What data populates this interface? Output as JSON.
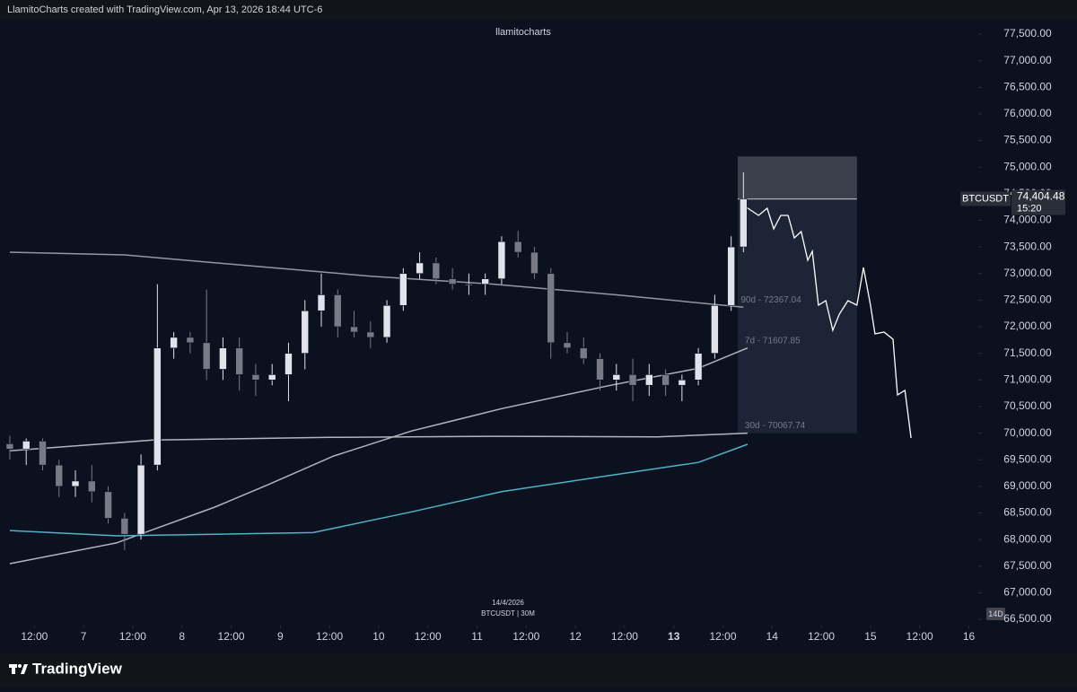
{
  "header": {
    "text": "LlamitoCharts created with TradingView.com, Apr 13, 2026 18:44 UTC-6"
  },
  "footer": {
    "brand": "TradingView"
  },
  "chart_data": {
    "type": "candlestick",
    "watermark": "llamitocharts",
    "date_note": "14/4/2026",
    "symbol_note": "BTCUSDT | 30M",
    "range_badge": "14D",
    "xlim": [
      -20.4,
      218.3
    ],
    "ylim": [
      66383,
      77770
    ],
    "xticks": [
      {
        "value": -12,
        "label": "12:00"
      },
      {
        "value": 0,
        "label": "7"
      },
      {
        "value": 12,
        "label": "12:00"
      },
      {
        "value": 24,
        "label": "8"
      },
      {
        "value": 36,
        "label": "12:00"
      },
      {
        "value": 48,
        "label": "9"
      },
      {
        "value": 60,
        "label": "12:00"
      },
      {
        "value": 72,
        "label": "10"
      },
      {
        "value": 84,
        "label": "12:00"
      },
      {
        "value": 96,
        "label": "11"
      },
      {
        "value": 108,
        "label": "12:00"
      },
      {
        "value": 120,
        "label": "12"
      },
      {
        "value": 132,
        "label": "12:00"
      },
      {
        "value": 144,
        "label": "13"
      },
      {
        "value": 156,
        "label": "12:00"
      },
      {
        "value": 168,
        "label": "14"
      },
      {
        "value": 180,
        "label": "12:00"
      },
      {
        "value": 192,
        "label": "15"
      },
      {
        "value": 204,
        "label": "12:00"
      },
      {
        "value": 216,
        "label": "16"
      }
    ],
    "yticks": [
      {
        "value": 66500,
        "label": "66,500.00"
      },
      {
        "value": 67000,
        "label": "67,000.00"
      },
      {
        "value": 67500,
        "label": "67,500.00"
      },
      {
        "value": 68000,
        "label": "68,000.00"
      },
      {
        "value": 68500,
        "label": "68,500.00"
      },
      {
        "value": 69000,
        "label": "69,000.00"
      },
      {
        "value": 69500,
        "label": "69,500.00"
      },
      {
        "value": 70000,
        "label": "70,000.00"
      },
      {
        "value": 70500,
        "label": "70,500.00"
      },
      {
        "value": 71000,
        "label": "71,000.00"
      },
      {
        "value": 71500,
        "label": "71,500.00"
      },
      {
        "value": 72000,
        "label": "72,000.00"
      },
      {
        "value": 72500,
        "label": "72,500.00"
      },
      {
        "value": 73000,
        "label": "73,000.00"
      },
      {
        "value": 73500,
        "label": "73,500.00"
      },
      {
        "value": 74000,
        "label": "74,000.00"
      },
      {
        "value": 74500,
        "label": "74,500.00"
      },
      {
        "value": 75000,
        "label": "75,000.00"
      },
      {
        "value": 75500,
        "label": "75,500.00"
      },
      {
        "value": 76000,
        "label": "76,000.00"
      },
      {
        "value": 76500,
        "label": "76,500.00"
      },
      {
        "value": 77000,
        "label": "77,000.00"
      },
      {
        "value": 77500,
        "label": "77,500.00"
      }
    ],
    "candles": {
      "up_color": "#e0e3eb",
      "down_color": "#787b86",
      "x": [
        -18,
        -14,
        -10,
        -6,
        -2,
        2,
        6,
        10,
        14,
        18,
        22,
        26,
        30,
        34,
        38,
        42,
        46,
        50,
        54,
        58,
        62,
        66,
        70,
        74,
        78,
        82,
        86,
        90,
        94,
        98,
        102,
        106,
        110,
        114,
        118,
        122,
        126,
        130,
        134,
        138,
        142,
        146,
        150,
        154,
        158,
        161
      ],
      "open": [
        69800,
        69700,
        69850,
        69400,
        69000,
        69100,
        68900,
        68400,
        68100,
        69400,
        71600,
        71800,
        71700,
        71200,
        71600,
        71100,
        71000,
        71100,
        71500,
        72300,
        72600,
        72000,
        71900,
        71800,
        72400,
        73000,
        73200,
        72900,
        72800,
        72800,
        72900,
        73600,
        73400,
        73000,
        71700,
        71600,
        71400,
        71000,
        71100,
        70900,
        71100,
        70900,
        71000,
        71500,
        72400,
        73500
      ],
      "high": [
        69950,
        69900,
        69900,
        69500,
        69300,
        69400,
        69000,
        68500,
        69600,
        72800,
        71900,
        71900,
        72700,
        71800,
        71800,
        71300,
        71300,
        71700,
        72500,
        73000,
        72700,
        72300,
        72100,
        72500,
        73100,
        73400,
        73300,
        73100,
        73000,
        73000,
        73700,
        73800,
        73500,
        73100,
        71900,
        71800,
        71500,
        71300,
        71400,
        71300,
        71200,
        71100,
        71600,
        72600,
        73700,
        74900
      ],
      "low": [
        69500,
        69400,
        69300,
        68800,
        68800,
        68700,
        68300,
        67800,
        68000,
        69300,
        71400,
        71500,
        71000,
        71000,
        70800,
        70700,
        70900,
        70600,
        71200,
        72000,
        71800,
        71800,
        71600,
        71700,
        72300,
        72900,
        72800,
        72700,
        72600,
        72600,
        72800,
        73300,
        72900,
        71400,
        71500,
        71300,
        70800,
        70800,
        70600,
        70700,
        70700,
        70600,
        70900,
        71400,
        72300,
        73400
      ],
      "close": [
        69700,
        69850,
        69400,
        69000,
        69100,
        68900,
        68400,
        68100,
        69400,
        71600,
        71800,
        71700,
        71200,
        71600,
        71100,
        71000,
        71100,
        71500,
        72300,
        72600,
        72000,
        71900,
        71800,
        72400,
        73000,
        73200,
        72900,
        72800,
        72800,
        72900,
        73600,
        73400,
        73000,
        71700,
        71600,
        71400,
        71000,
        71100,
        70900,
        71100,
        70900,
        71000,
        71500,
        72400,
        73500,
        74400
      ]
    },
    "series": [
      {
        "name": "90d - 72367.04",
        "color": "#9598a1",
        "x": [
          -18,
          10,
          40,
          70,
          100,
          130,
          161
        ],
        "values": [
          73400,
          73350,
          73150,
          72950,
          72800,
          72600,
          72367
        ]
      },
      {
        "name": "7d - 71607.85",
        "color": "#b2b5be",
        "x": [
          -18,
          8,
          17,
          32,
          45,
          61,
          80,
          102,
          128,
          150,
          162
        ],
        "values": [
          67547,
          67936,
          68190,
          68610,
          69030,
          69570,
          70040,
          70460,
          70890,
          71220,
          71600
        ]
      },
      {
        "name": "30d - 70067.74",
        "color": "#b2b5be",
        "x": [
          -18,
          17,
          60,
          100,
          140,
          162
        ],
        "values": [
          69670,
          69870,
          69920,
          69940,
          69930,
          70000
        ]
      },
      {
        "color": "#4fb3c8",
        "x": [
          -18,
          8,
          56,
          80,
          102,
          128,
          150,
          162
        ],
        "values": [
          68170,
          68070,
          68130,
          68520,
          68900,
          69200,
          69450,
          69790
        ]
      },
      {
        "color": "#ffffff",
        "x": [
          161.4,
          164.7,
          166.8,
          168.4,
          170.1,
          171.9,
          173.4,
          175.1,
          176.7,
          177.8,
          179.3,
          181.1,
          182.8,
          184.4,
          186.5,
          188.7,
          190.3,
          192.0,
          193.1,
          195.3,
          197.5,
          198.6,
          200.4,
          201.9
        ],
        "values": [
          74261,
          74092,
          74227,
          73839,
          74092,
          74092,
          73670,
          73789,
          73249,
          73417,
          72405,
          72490,
          71933,
          72237,
          72490,
          72405,
          73114,
          72405,
          71866,
          71899,
          71764,
          70718,
          70803,
          69909
        ]
      }
    ],
    "position": {
      "x0": 159.6,
      "x1": 188.7,
      "stop": 75200,
      "entry": 74400,
      "target": 70000
    },
    "last_price": {
      "symbol": "BTCUSDT",
      "value": 74404.48,
      "label": "74,404.48",
      "countdown": "15:20"
    }
  }
}
